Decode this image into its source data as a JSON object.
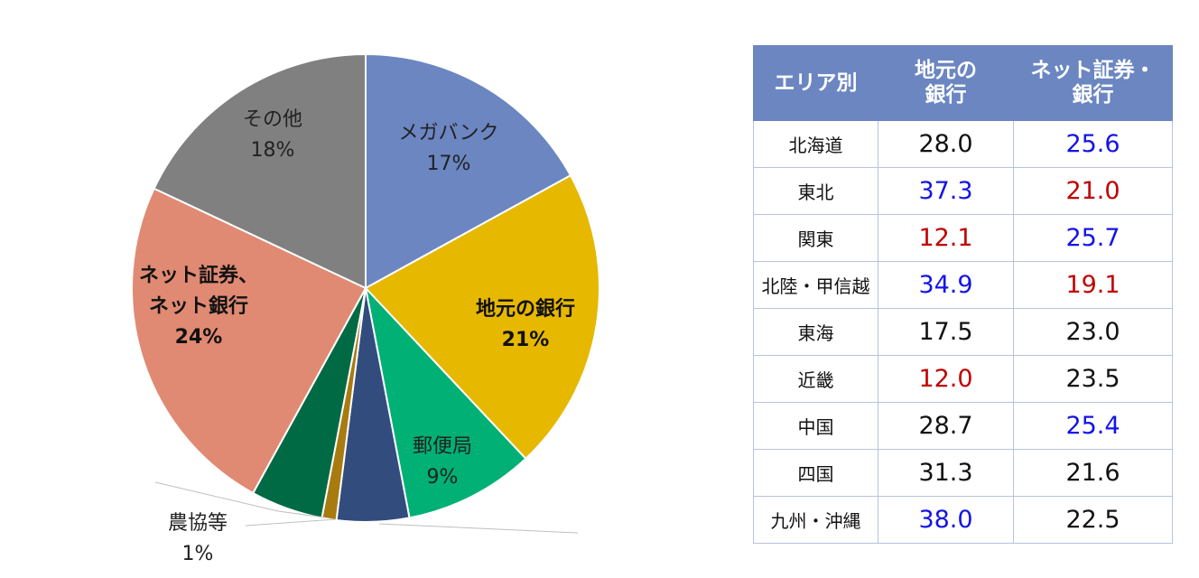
{
  "colors": {
    "megabank": "#6b86c1",
    "local_bank": "#e6b800",
    "post_office": "#00b075",
    "dark_blue": "#334c7e",
    "nokyo": "#a87b10",
    "dark_green": "#006a45",
    "net": "#e08a73",
    "other": "#808080",
    "table_header": "#6b86c1",
    "value_blue": "#1414e6",
    "value_red": "#c00000",
    "value_black": "#111111"
  },
  "chart_data": [
    {
      "type": "pie",
      "slices": [
        {
          "key": "megabank",
          "name": "メガバンク",
          "pct_label": "17%",
          "value": 17,
          "bold": false,
          "show_label": true
        },
        {
          "key": "local_bank",
          "name": "地元の銀行",
          "pct_label": "21%",
          "value": 21,
          "bold": true,
          "show_label": true
        },
        {
          "key": "post_office",
          "name": "郵便局",
          "pct_label": "9%",
          "value": 9,
          "bold": false,
          "show_label": true
        },
        {
          "key": "dark_blue",
          "name": "",
          "pct_label": "",
          "value": 5,
          "bold": false,
          "show_label": false
        },
        {
          "key": "nokyo",
          "name": "農協等",
          "pct_label": "1%",
          "value": 1,
          "bold": false,
          "show_label": true
        },
        {
          "key": "dark_green",
          "name": "",
          "pct_label": "",
          "value": 5,
          "bold": false,
          "show_label": false
        },
        {
          "key": "net",
          "name_lines": [
            "ネット証券、",
            "ネット銀行"
          ],
          "pct_label": "24%",
          "value": 24,
          "bold": true,
          "show_label": true
        },
        {
          "key": "other",
          "name": "その他",
          "pct_label": "18%",
          "value": 18,
          "bold": false,
          "show_label": true
        }
      ]
    },
    {
      "type": "table",
      "headers": [
        "エリア別",
        "地元の\n銀行",
        "ネット証券・\n銀行"
      ],
      "rows": [
        {
          "area": "北海道",
          "local": "28.0",
          "local_color": "black",
          "net": "25.6",
          "net_color": "blue"
        },
        {
          "area": "東北",
          "local": "37.3",
          "local_color": "blue",
          "net": "21.0",
          "net_color": "red"
        },
        {
          "area": "関東",
          "local": "12.1",
          "local_color": "red",
          "net": "25.7",
          "net_color": "blue"
        },
        {
          "area": "北陸・甲信越",
          "local": "34.9",
          "local_color": "blue",
          "net": "19.1",
          "net_color": "red"
        },
        {
          "area": "東海",
          "local": "17.5",
          "local_color": "black",
          "net": "23.0",
          "net_color": "black"
        },
        {
          "area": "近畿",
          "local": "12.0",
          "local_color": "red",
          "net": "23.5",
          "net_color": "black"
        },
        {
          "area": "中国",
          "local": "28.7",
          "local_color": "black",
          "net": "25.4",
          "net_color": "blue"
        },
        {
          "area": "四国",
          "local": "31.3",
          "local_color": "black",
          "net": "21.6",
          "net_color": "black"
        },
        {
          "area": "九州・沖縄",
          "local": "38.0",
          "local_color": "blue",
          "net": "22.5",
          "net_color": "black"
        }
      ]
    }
  ]
}
